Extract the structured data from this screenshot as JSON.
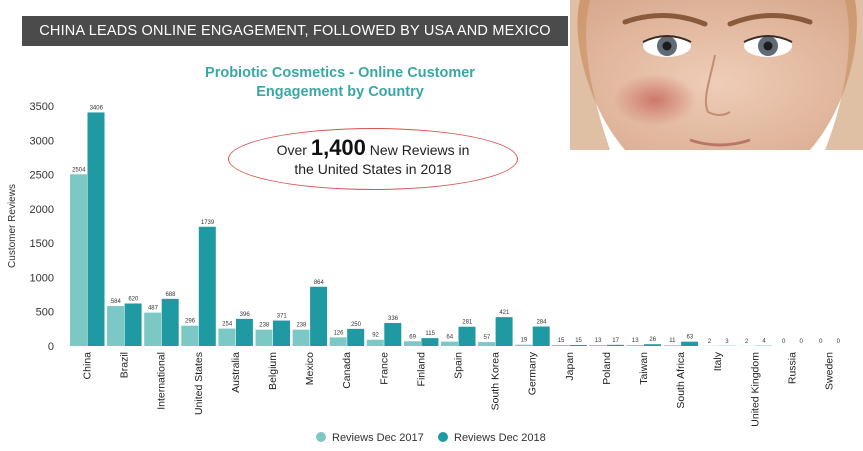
{
  "banner": "CHINA LEADS ONLINE ENGAGEMENT, FOLLOWED BY USA AND MEXICO",
  "callout": {
    "prefix": "Over",
    "number": "1,400",
    "suffix": "New Reviews in",
    "line2": "the United States in 2018"
  },
  "image": {
    "description": "woman-face-with-rosacea-photo"
  },
  "colors": {
    "dec2017": "#7cc8c4",
    "dec2018": "#1f9aa3",
    "banner_bg": "#4b4b4b",
    "title": "#3aa6a6",
    "ellipse": "#d9534f"
  },
  "chart_data": {
    "type": "bar",
    "title": "Probiotic Cosmetics - Online Customer Engagement by Country",
    "ylabel": "Customer Reviews",
    "xlabel": "",
    "ylim": [
      0,
      3500
    ],
    "yticks": [
      0,
      500,
      1000,
      1500,
      2000,
      2500,
      3000,
      3500
    ],
    "grid": false,
    "legend_position": "bottom-center",
    "categories": [
      "China",
      "Brazil",
      "International",
      "United States",
      "Australia",
      "Belgium",
      "Mexico",
      "Canada",
      "France",
      "Finland",
      "Spain",
      "South Korea",
      "Germany",
      "Japan",
      "Poland",
      "Taiwan",
      "South Africa",
      "Italy",
      "United Kingdom",
      "Russia",
      "Sweden"
    ],
    "series": [
      {
        "name": "Reviews Dec 2017",
        "values": [
          2504,
          584,
          487,
          296,
          254,
          238,
          238,
          126,
          92,
          69,
          64,
          57,
          19,
          15,
          13,
          13,
          11,
          2,
          2,
          0,
          0
        ]
      },
      {
        "name": "Reviews Dec 2018",
        "values": [
          3406,
          620,
          688,
          1739,
          396,
          371,
          864,
          250,
          336,
          115,
          281,
          421,
          284,
          15,
          17,
          26,
          63,
          3,
          4,
          0,
          0
        ]
      }
    ]
  }
}
